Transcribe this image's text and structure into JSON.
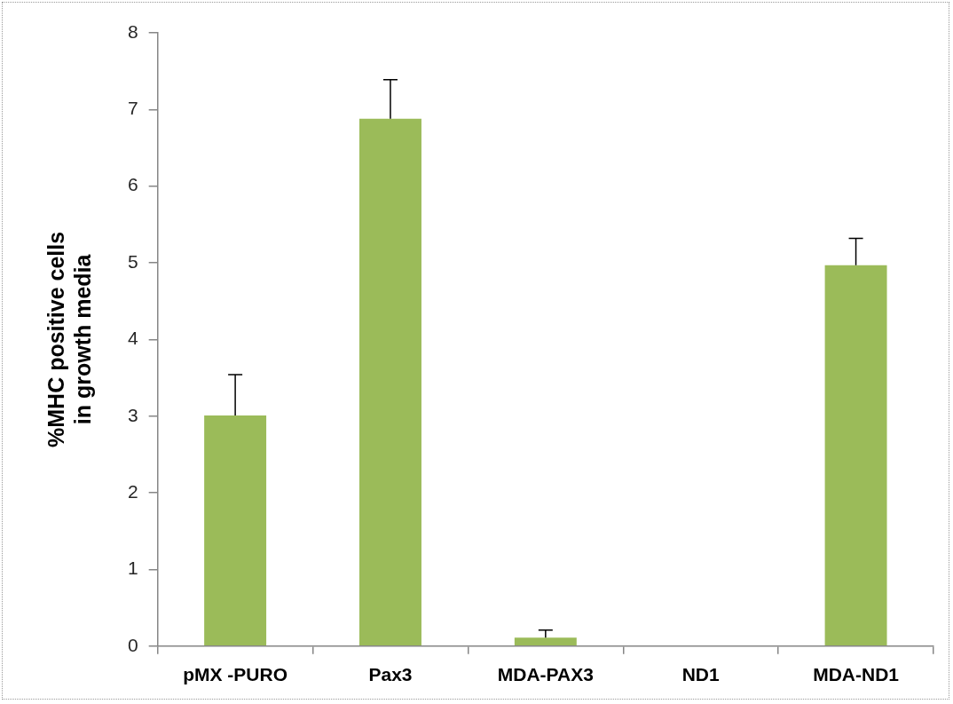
{
  "chart_data": {
    "type": "bar",
    "ylabel": "%MHC positive cells in growth media",
    "categories": [
      "pMX -PURO",
      "Pax3",
      "MDA-PAX3",
      "ND1",
      "MDA-ND1"
    ],
    "values": [
      3.01,
      6.88,
      0.11,
      0,
      4.97
    ],
    "errors": [
      [
        3.01,
        3.54
      ],
      [
        6.88,
        7.39
      ],
      [
        0.11,
        0.21
      ],
      null,
      [
        4.97,
        5.32
      ]
    ],
    "color": "#9bbb59",
    "ylim": [
      0,
      8
    ],
    "yticks": [
      0,
      1,
      2,
      3,
      4,
      5,
      6,
      7,
      8
    ],
    "grid": false,
    "legend": false
  }
}
